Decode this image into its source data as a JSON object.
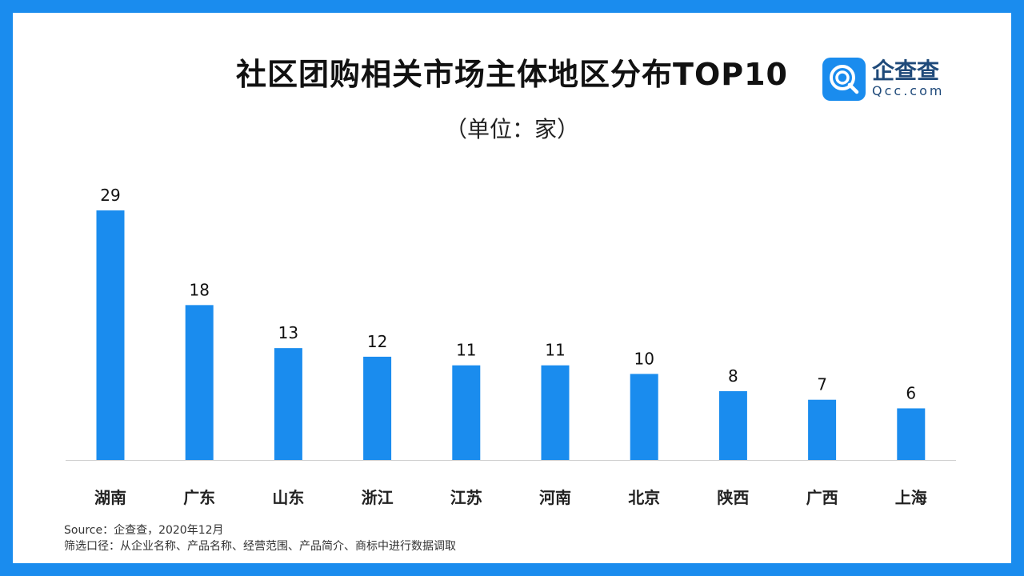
{
  "title": "社区团购相关市场主体地区分布TOP10",
  "subtitle": "（单位：家）",
  "logo": {
    "name": "企查查",
    "domain": "Qcc.com",
    "color": "#1a8cee"
  },
  "footnotes": {
    "source": "Source：企查查，2020年12月",
    "method": "筛选口径：从企业名称、产品名称、经营范围、产品简介、商标中进行数据调取"
  },
  "chart_data": {
    "type": "bar",
    "title": "社区团购相关市场主体地区分布TOP10",
    "subtitle": "（单位：家）",
    "xlabel": "",
    "ylabel": "",
    "categories": [
      "湖南",
      "广东",
      "山东",
      "浙江",
      "江苏",
      "河南",
      "北京",
      "陕西",
      "广西",
      "上海"
    ],
    "values": [
      29,
      18,
      13,
      12,
      11,
      11,
      10,
      8,
      7,
      6
    ],
    "ylim": [
      0,
      29
    ],
    "grid": false,
    "bar_color": "#1a8cee",
    "data_labels": true
  }
}
